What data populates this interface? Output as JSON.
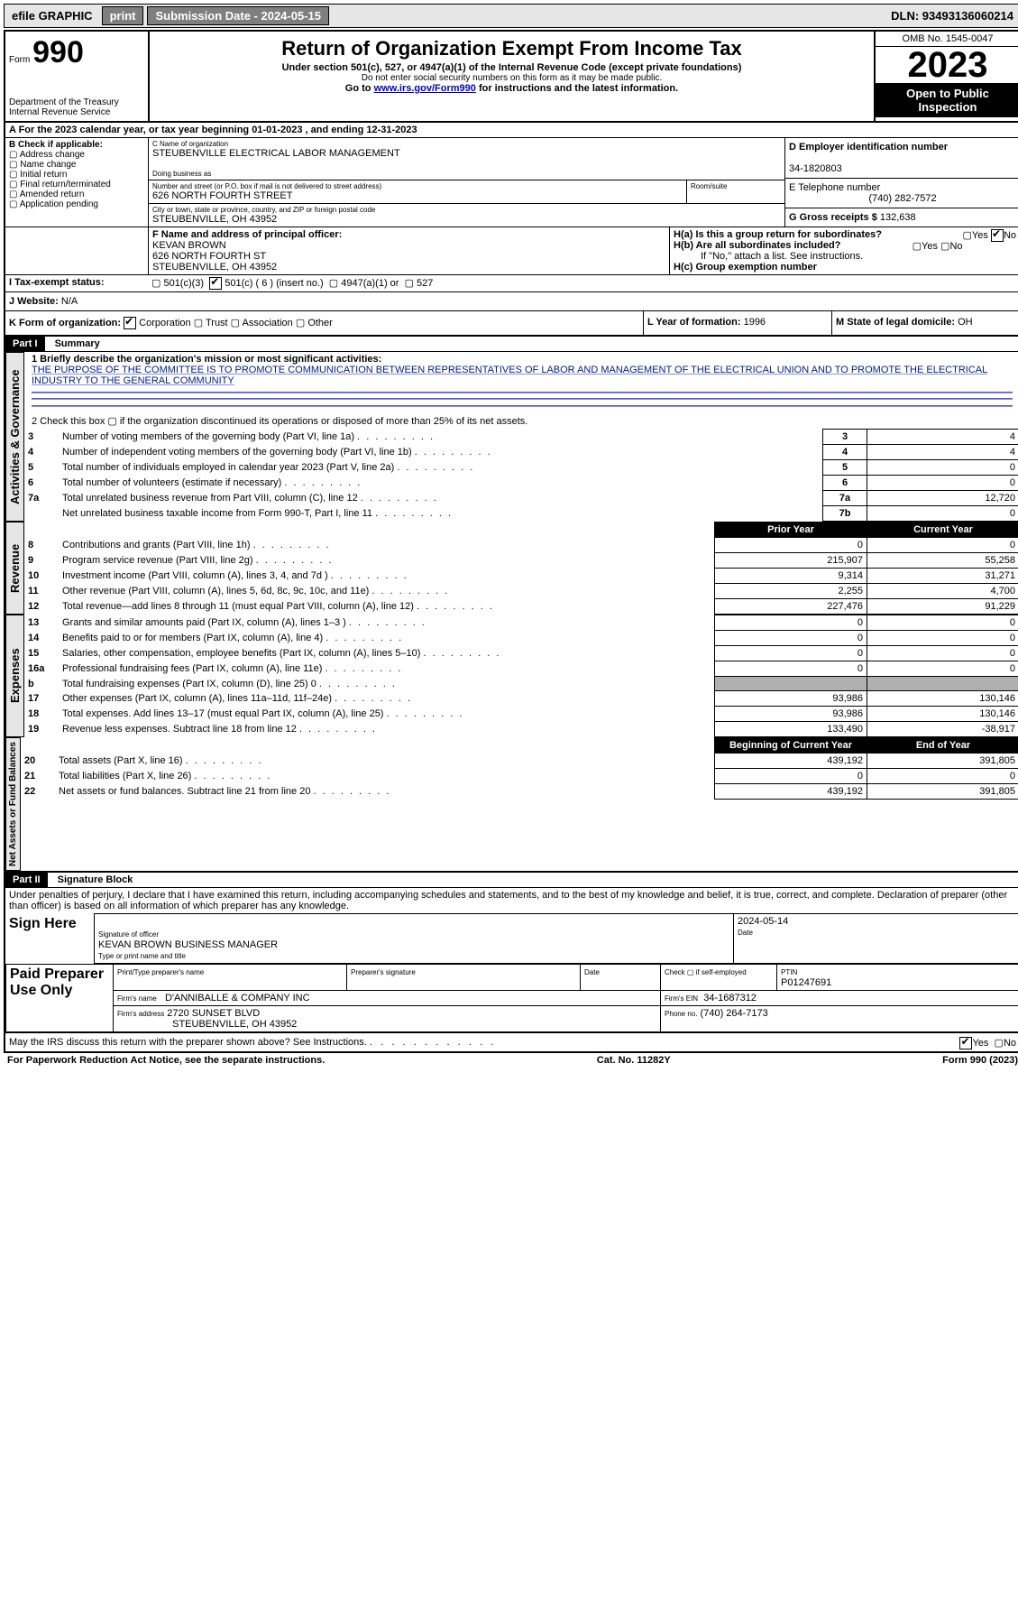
{
  "topbar": {
    "efile": "efile GRAPHIC",
    "print": "print",
    "sub_label": "Submission Date - 2024-05-15",
    "dln": "DLN: 93493136060214"
  },
  "header": {
    "form_word": "Form",
    "form_no": "990",
    "dept": "Department of the Treasury",
    "irs": "Internal Revenue Service",
    "title": "Return of Organization Exempt From Income Tax",
    "sub1": "Under section 501(c), 527, or 4947(a)(1) of the Internal Revenue Code (except private foundations)",
    "sub2": "Do not enter social security numbers on this form as it may be made public.",
    "sub3_pre": "Go to ",
    "sub3_link": "www.irs.gov/Form990",
    "sub3_post": " for instructions and the latest information.",
    "omb": "OMB No. 1545-0047",
    "year": "2023",
    "inspect": "Open to Public Inspection"
  },
  "sectionA": {
    "line": "A For the 2023 calendar year, or tax year beginning 01-01-2023   , and ending 12-31-2023"
  },
  "sectionB": {
    "title": "B Check if applicable:",
    "opts": [
      "Address change",
      "Name change",
      "Initial return",
      "Final return/terminated",
      "Amended return",
      "Application pending"
    ]
  },
  "sectionC": {
    "lbl_name": "C Name of organization",
    "name": "STEUBENVILLE ELECTRICAL LABOR MANAGEMENT",
    "dba_lbl": "Doing business as",
    "addr_lbl": "Number and street (or P.O. box if mail is not delivered to street address)",
    "room_lbl": "Room/suite",
    "addr": "626 NORTH FOURTH STREET",
    "city_lbl": "City or town, state or province, country, and ZIP or foreign postal code",
    "city": "STEUBENVILLE, OH  43952"
  },
  "sectionD": {
    "lbl": "D Employer identification number",
    "val": "34-1820803"
  },
  "sectionE": {
    "lbl": "E Telephone number",
    "val": "(740) 282-7572"
  },
  "sectionG": {
    "lbl": "G Gross receipts $",
    "val": "132,638"
  },
  "sectionF": {
    "lbl": "F Name and address of principal officer:",
    "name": "KEVAN BROWN",
    "addr1": "626 NORTH FOURTH ST",
    "addr2": "STEUBENVILLE, OH  43952"
  },
  "sectionH": {
    "ha": "H(a)  Is this a group return for subordinates?",
    "hb": "H(b)  Are all subordinates included?",
    "hb_note": "If \"No,\" attach a list. See instructions.",
    "hc": "H(c)  Group exemption number",
    "yes": "Yes",
    "no": "No"
  },
  "sectionI": {
    "lbl": "I   Tax-exempt status:",
    "o1": "501(c)(3)",
    "o2": "501(c) ( 6 ) (insert no.)",
    "o3": "4947(a)(1) or",
    "o4": "527"
  },
  "sectionJ": {
    "lbl": "J   Website:",
    "val": "N/A"
  },
  "sectionK": {
    "lbl": "K Form of organization:",
    "corp": "Corporation",
    "trust": "Trust",
    "assoc": "Association",
    "other": "Other"
  },
  "sectionL": {
    "lbl": "L Year of formation:",
    "val": "1996"
  },
  "sectionM": {
    "lbl": "M State of legal domicile:",
    "val": "OH"
  },
  "part1": {
    "hdr_part": "Part I",
    "hdr_title": "Summary",
    "l1_lbl": "1  Briefly describe the organization's mission or most significant activities:",
    "l1_txt": "THE PURPOSE OF THE COMMITTEE IS TO PROMOTE COMMUNICATION BETWEEN REPRESENTATIVES OF LABOR AND MANAGEMENT OF THE ELECTRICAL UNION AND TO PROMOTE THE ELECTRICAL INDUSTRY TO THE GENERAL COMMUNITY",
    "l2": "2   Check this box  ▢  if the organization discontinued its operations or disposed of more than 25% of its net assets.",
    "side_ag": "Activities & Governance",
    "side_rev": "Revenue",
    "side_exp": "Expenses",
    "side_na": "Net Assets or Fund Balances",
    "rows_ag": [
      {
        "n": "3",
        "t": "Number of voting members of the governing body (Part VI, line 1a)",
        "box": "3",
        "v": "4"
      },
      {
        "n": "4",
        "t": "Number of independent voting members of the governing body (Part VI, line 1b)",
        "box": "4",
        "v": "4"
      },
      {
        "n": "5",
        "t": "Total number of individuals employed in calendar year 2023 (Part V, line 2a)",
        "box": "5",
        "v": "0"
      },
      {
        "n": "6",
        "t": "Total number of volunteers (estimate if necessary)",
        "box": "6",
        "v": "0"
      },
      {
        "n": "7a",
        "t": "Total unrelated business revenue from Part VIII, column (C), line 12",
        "box": "7a",
        "v": "12,720"
      },
      {
        "n": "",
        "t": "Net unrelated business taxable income from Form 990-T, Part I, line 11",
        "box": "7b",
        "v": "0"
      }
    ],
    "hdr_prior": "Prior Year",
    "hdr_curr": "Current Year",
    "rows_rev": [
      {
        "n": "8",
        "t": "Contributions and grants (Part VIII, line 1h)",
        "p": "0",
        "c": "0"
      },
      {
        "n": "9",
        "t": "Program service revenue (Part VIII, line 2g)",
        "p": "215,907",
        "c": "55,258"
      },
      {
        "n": "10",
        "t": "Investment income (Part VIII, column (A), lines 3, 4, and 7d )",
        "p": "9,314",
        "c": "31,271"
      },
      {
        "n": "11",
        "t": "Other revenue (Part VIII, column (A), lines 5, 6d, 8c, 9c, 10c, and 11e)",
        "p": "2,255",
        "c": "4,700"
      },
      {
        "n": "12",
        "t": "Total revenue—add lines 8 through 11 (must equal Part VIII, column (A), line 12)",
        "p": "227,476",
        "c": "91,229"
      }
    ],
    "rows_exp": [
      {
        "n": "13",
        "t": "Grants and similar amounts paid (Part IX, column (A), lines 1–3 )",
        "p": "0",
        "c": "0"
      },
      {
        "n": "14",
        "t": "Benefits paid to or for members (Part IX, column (A), line 4)",
        "p": "0",
        "c": "0"
      },
      {
        "n": "15",
        "t": "Salaries, other compensation, employee benefits (Part IX, column (A), lines 5–10)",
        "p": "0",
        "c": "0"
      },
      {
        "n": "16a",
        "t": "Professional fundraising fees (Part IX, column (A), line 11e)",
        "p": "0",
        "c": "0"
      },
      {
        "n": "b",
        "t": "Total fundraising expenses (Part IX, column (D), line 25) 0",
        "p": "",
        "c": "",
        "shade": true
      },
      {
        "n": "17",
        "t": "Other expenses (Part IX, column (A), lines 11a–11d, 11f–24e)",
        "p": "93,986",
        "c": "130,146"
      },
      {
        "n": "18",
        "t": "Total expenses. Add lines 13–17 (must equal Part IX, column (A), line 25)",
        "p": "93,986",
        "c": "130,146"
      },
      {
        "n": "19",
        "t": "Revenue less expenses. Subtract line 18 from line 12",
        "p": "133,490",
        "c": "-38,917"
      }
    ],
    "hdr_beg": "Beginning of Current Year",
    "hdr_end": "End of Year",
    "rows_na": [
      {
        "n": "20",
        "t": "Total assets (Part X, line 16)",
        "p": "439,192",
        "c": "391,805"
      },
      {
        "n": "21",
        "t": "Total liabilities (Part X, line 26)",
        "p": "0",
        "c": "0"
      },
      {
        "n": "22",
        "t": "Net assets or fund balances. Subtract line 21 from line 20",
        "p": "439,192",
        "c": "391,805"
      }
    ]
  },
  "part2": {
    "hdr_part": "Part II",
    "hdr_title": "Signature Block",
    "decl": "Under penalties of perjury, I declare that I have examined this return, including accompanying schedules and statements, and to the best of my knowledge and belief, it is true, correct, and complete. Declaration of preparer (other than officer) is based on all information of which preparer has any knowledge.",
    "sign_here": "Sign Here",
    "sig_lbl": "Signature of officer",
    "date_lbl": "Date",
    "date_val": "2024-05-14",
    "officer": "KEVAN BROWN  BUSINESS MANAGER",
    "type_lbl": "Type or print name and title",
    "paid": "Paid Preparer Use Only",
    "prep_name_lbl": "Print/Type preparer's name",
    "prep_sig_lbl": "Preparer's signature",
    "check_lbl": "Check ▢ if self-employed",
    "ptin_lbl": "PTIN",
    "ptin": "P01247691",
    "firm_name_lbl": "Firm's name",
    "firm_name": "D'ANNIBALLE & COMPANY INC",
    "firm_ein_lbl": "Firm's EIN",
    "firm_ein": "34-1687312",
    "firm_addr_lbl": "Firm's address",
    "firm_addr1": "2720 SUNSET BLVD",
    "firm_addr2": "STEUBENVILLE, OH  43952",
    "phone_lbl": "Phone no.",
    "phone": "(740) 264-7173",
    "discuss": "May the IRS discuss this return with the preparer shown above? See Instructions."
  },
  "footer": {
    "pra": "For Paperwork Reduction Act Notice, see the separate instructions.",
    "cat": "Cat. No. 11282Y",
    "form": "Form 990 (2023)"
  }
}
